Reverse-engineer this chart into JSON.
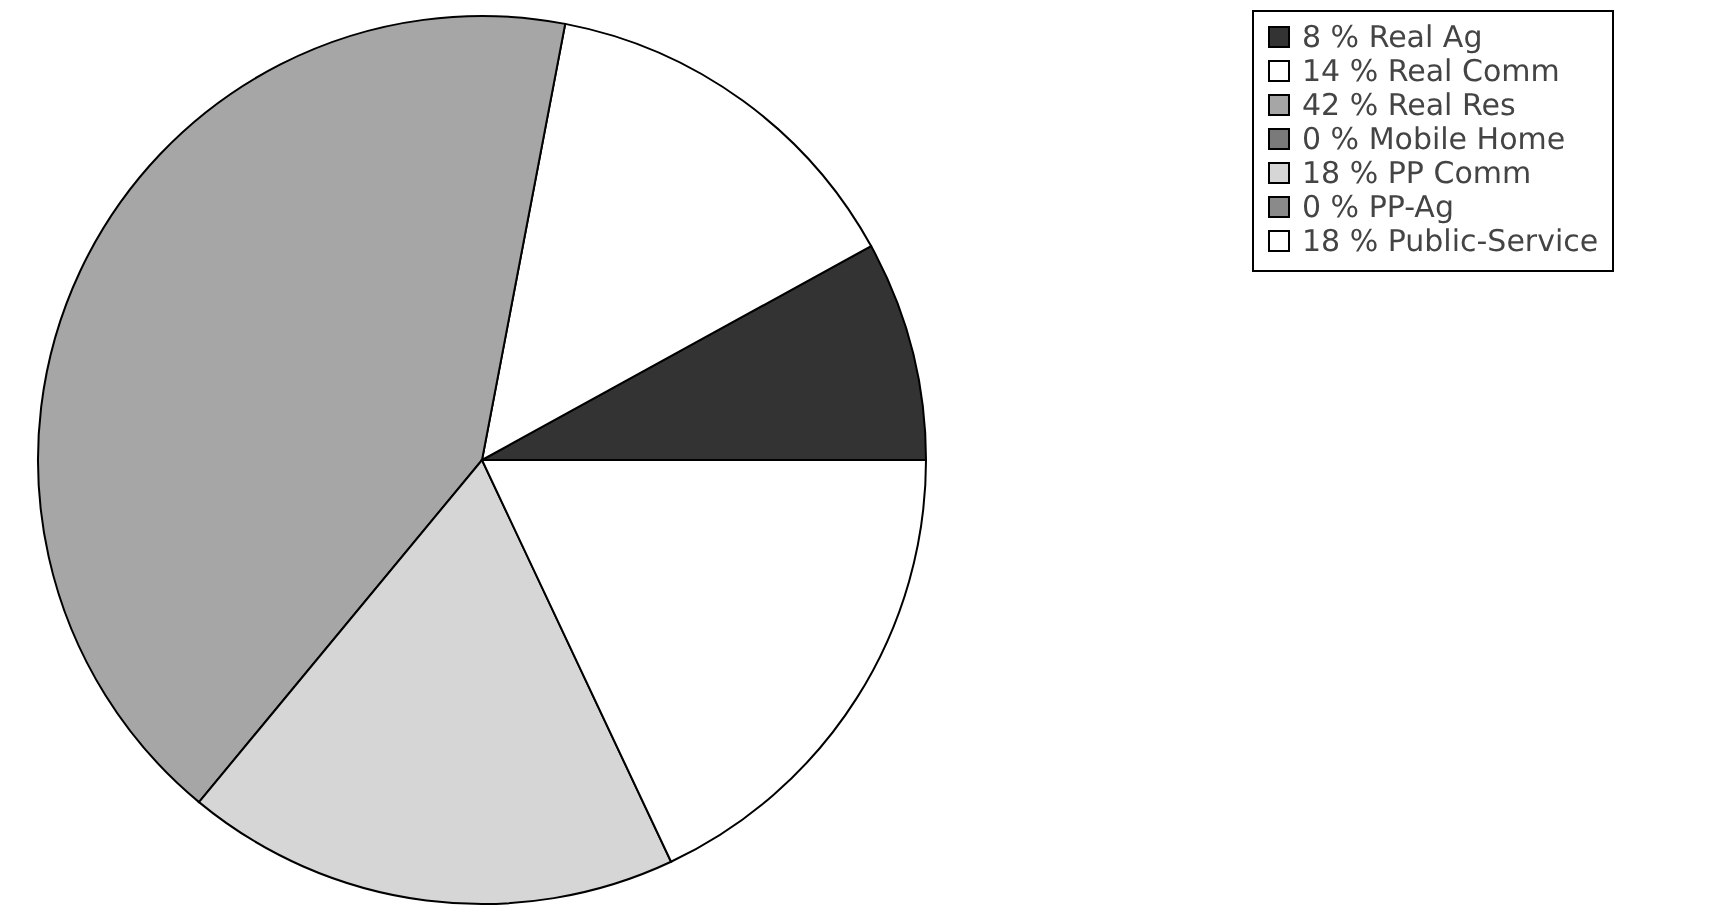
{
  "chart_data": {
    "type": "pie",
    "categories": [
      "8 % Real Ag",
      "14 % Real Comm",
      "42 % Real Res",
      "0 % Mobile Home",
      "18 % PP Comm",
      "0 % PP-Ag",
      "18 % Public-Service"
    ],
    "values": [
      8,
      14,
      42,
      0,
      18,
      0,
      18
    ],
    "colors": [
      "#333333",
      "#ffffff",
      "#a6a6a6",
      "#7a7a7a",
      "#d6d6d6",
      "#8a8a8a",
      "#ffffff"
    ],
    "legend": "right"
  }
}
